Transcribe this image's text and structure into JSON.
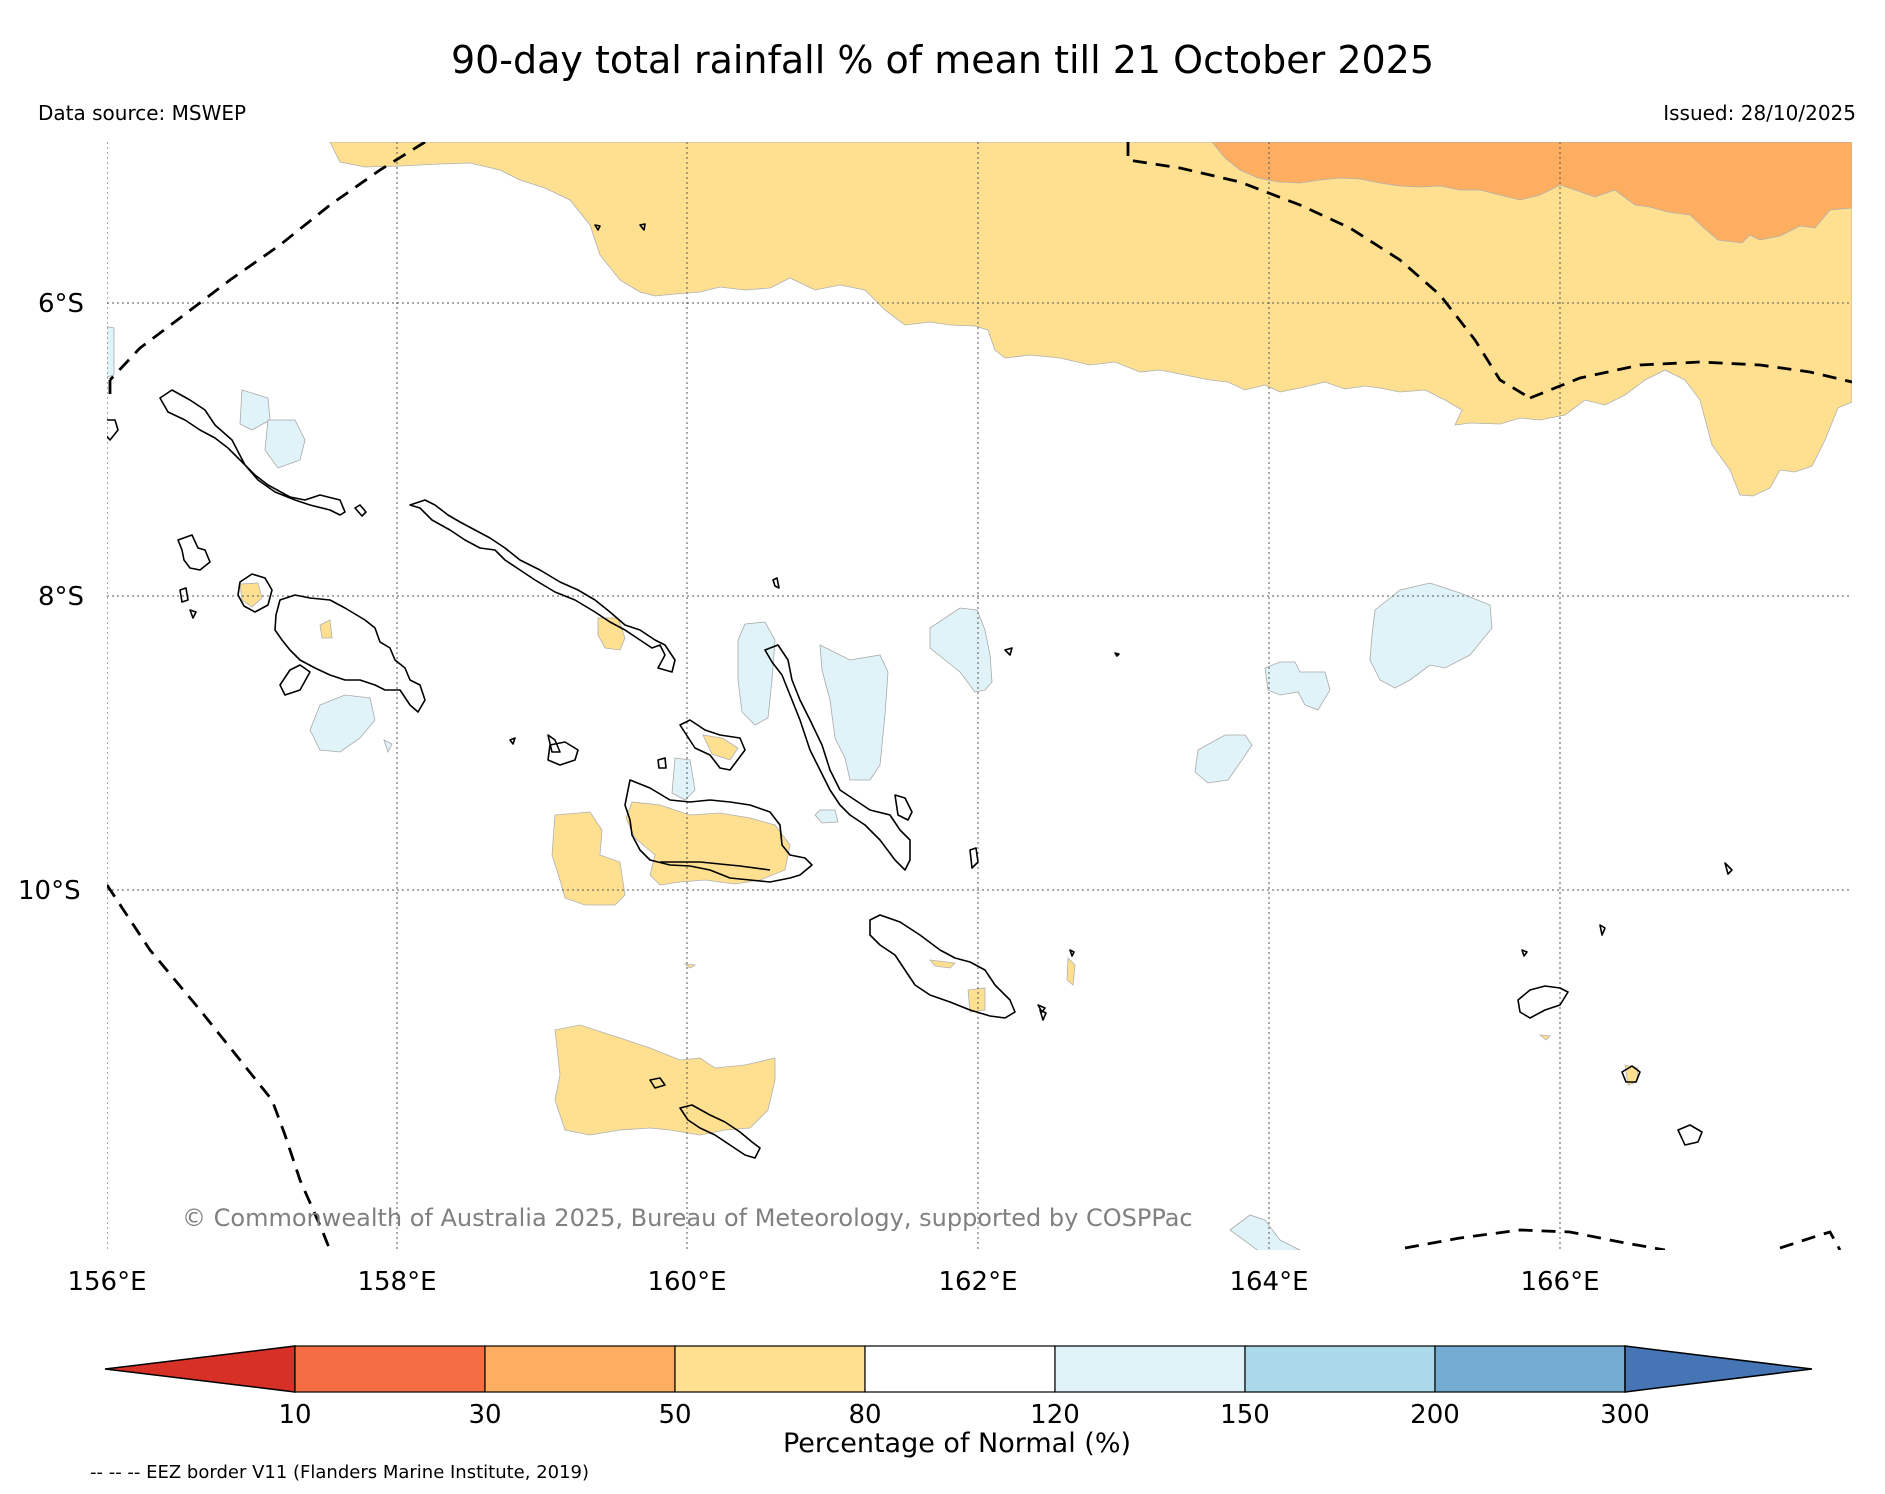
{
  "header": {
    "title": "90-day total rainfall % of mean till 21 October 2025",
    "source": "Data source: MSWEP",
    "issued": "Issued: 28/10/2025"
  },
  "map": {
    "lat_labels": [
      "6°S",
      "8°S",
      "10°S"
    ],
    "lon_labels": [
      "156°E",
      "158°E",
      "160°E",
      "162°E",
      "164°E",
      "166°E"
    ],
    "credit": "© Commonwealth of Australia 2025, Bureau of Meteorology, supported by COSPPac"
  },
  "legend": {
    "title": "Percentage of Normal (%)",
    "ticks": [
      "10",
      "30",
      "50",
      "80",
      "120",
      "150",
      "200",
      "300"
    ],
    "colors": [
      "#d73027",
      "#f46d43",
      "#fdae61",
      "#fee090",
      "#ffffff",
      "#e0f3f8",
      "#abd9e9",
      "#74add1",
      "#4575b4"
    ]
  },
  "footnote": "-- -- -- EEZ border V11 (Flanders Marine Institute, 2019)"
}
